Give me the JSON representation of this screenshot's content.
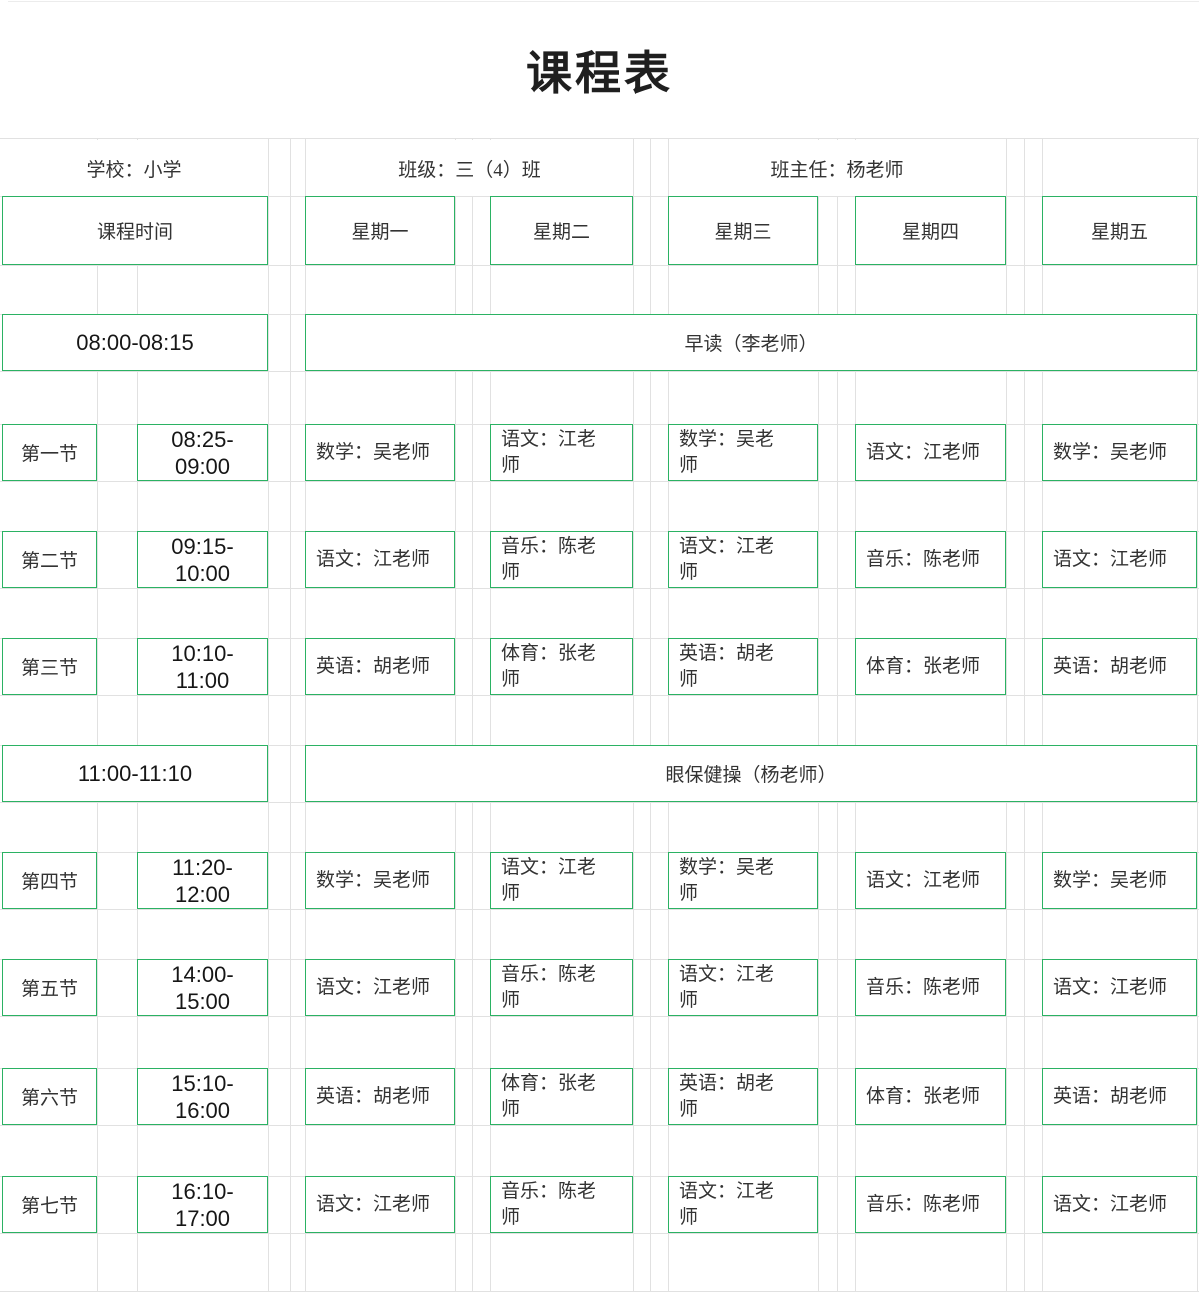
{
  "title": "课程表",
  "info": {
    "school": "学校：小学",
    "class": "班级：三（4）班",
    "head_teacher": "班主任：杨老师"
  },
  "header": {
    "time_col": "课程时间",
    "days": [
      "星期一",
      "星期二",
      "星期三",
      "星期四",
      "星期五"
    ]
  },
  "special_rows": [
    {
      "time": "08:00-08:15",
      "activity": "早读（李老师）"
    },
    {
      "time": "11:00-11:10",
      "activity": "眼保健操（杨老师）"
    }
  ],
  "periods": [
    {
      "name": "第一节",
      "time": "08:25-09:00",
      "mon": "数学：吴老师",
      "tue": "语文：江老师",
      "wed": "数学：吴老师",
      "thu": "语文：江老师",
      "fri": "数学：吴老师"
    },
    {
      "name": "第二节",
      "time": "09:15-10:00",
      "mon": "语文：江老师",
      "tue": "音乐：陈老师",
      "wed": "语文：江老师",
      "thu": "音乐：陈老师",
      "fri": "语文：江老师"
    },
    {
      "name": "第三节",
      "time": "10:10-11:00",
      "mon": "英语：胡老师",
      "tue": "体育：张老师",
      "wed": "英语：胡老师",
      "thu": "体育：张老师",
      "fri": "英语：胡老师"
    },
    {
      "name": "第四节",
      "time": "11:20-12:00",
      "mon": "数学：吴老师",
      "tue": "语文：江老师",
      "wed": "数学：吴老师",
      "thu": "语文：江老师",
      "fri": "数学：吴老师"
    },
    {
      "name": "第五节",
      "time": "14:00-15:00",
      "mon": "语文：江老师",
      "tue": "音乐：陈老师",
      "wed": "语文：江老师",
      "thu": "音乐：陈老师",
      "fri": "语文：江老师"
    },
    {
      "name": "第六节",
      "time": "15:10-16:00",
      "mon": "英语：胡老师",
      "tue": "体育：张老师",
      "wed": "英语：胡老师",
      "thu": "体育：张老师",
      "fri": "英语：胡老师"
    },
    {
      "name": "第七节",
      "time": "16:10-17:00",
      "mon": "语文：江老师",
      "tue": "音乐：陈老师",
      "wed": "语文：江老师",
      "thu": "音乐：陈老师",
      "fri": "语文：江老师"
    }
  ],
  "colors": {
    "accent_green": "#2bb263",
    "gridline": "#e1e1e1"
  }
}
